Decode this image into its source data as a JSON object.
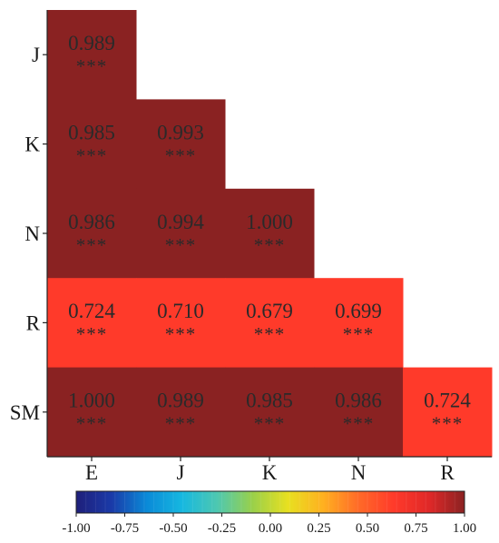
{
  "chart_data": {
    "type": "heatmap",
    "title": "",
    "xlabel": "",
    "ylabel": "",
    "x_categories": [
      "E",
      "J",
      "K",
      "N",
      "R"
    ],
    "y_categories": [
      "J",
      "K",
      "N",
      "R",
      "SM"
    ],
    "cells": [
      {
        "row": "J",
        "col": "E",
        "value": 0.989,
        "label": "0.989",
        "sig": "***"
      },
      {
        "row": "K",
        "col": "E",
        "value": 0.985,
        "label": "0.985",
        "sig": "***"
      },
      {
        "row": "K",
        "col": "J",
        "value": 0.993,
        "label": "0.993",
        "sig": "***"
      },
      {
        "row": "N",
        "col": "E",
        "value": 0.986,
        "label": "0.986",
        "sig": "***"
      },
      {
        "row": "N",
        "col": "J",
        "value": 0.994,
        "label": "0.994",
        "sig": "***"
      },
      {
        "row": "N",
        "col": "K",
        "value": 1.0,
        "label": "1.000",
        "sig": "***"
      },
      {
        "row": "R",
        "col": "E",
        "value": 0.724,
        "label": "0.724",
        "sig": "***"
      },
      {
        "row": "R",
        "col": "J",
        "value": 0.71,
        "label": "0.710",
        "sig": "***"
      },
      {
        "row": "R",
        "col": "K",
        "value": 0.679,
        "label": "0.679",
        "sig": "***"
      },
      {
        "row": "R",
        "col": "N",
        "value": 0.699,
        "label": "0.699",
        "sig": "***"
      },
      {
        "row": "SM",
        "col": "E",
        "value": 1.0,
        "label": "1.000",
        "sig": "***"
      },
      {
        "row": "SM",
        "col": "J",
        "value": 0.989,
        "label": "0.989",
        "sig": "***"
      },
      {
        "row": "SM",
        "col": "K",
        "value": 0.985,
        "label": "0.985",
        "sig": "***"
      },
      {
        "row": "SM",
        "col": "N",
        "value": 0.986,
        "label": "0.986",
        "sig": "***"
      },
      {
        "row": "SM",
        "col": "R",
        "value": 0.724,
        "label": "0.724",
        "sig": "***"
      }
    ],
    "colorbar": {
      "range": [
        -1.0,
        1.0
      ],
      "tick_labels": [
        "-1.00",
        "-0.75",
        "-0.50",
        "-0.25",
        "0.00",
        "0.25",
        "0.50",
        "0.75",
        "1.00"
      ],
      "colors": {
        "high": "#8a2222",
        "mid_high": "#ff3a2a",
        "stops": [
          "#1f1f7a",
          "#1a3aa8",
          "#0a8ad8",
          "#16b8e0",
          "#4ec8b0",
          "#9ad04a",
          "#e8e020",
          "#ffb020",
          "#ff6a28",
          "#ff3a2a",
          "#e02828",
          "#8a2222"
        ]
      }
    }
  }
}
